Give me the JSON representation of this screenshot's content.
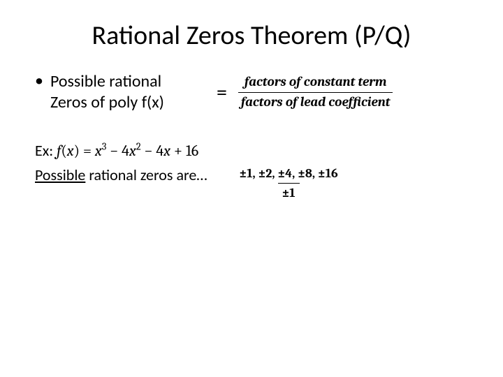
{
  "title": "Rational Zeros Theorem (P/Q)",
  "bullet": {
    "marker": "•",
    "line1": "Possible rational",
    "line2": "Zeros of poly f(x)"
  },
  "equals": "=",
  "formula": {
    "numerator": "factors of constant term",
    "denominator": "factors of lead coefficient"
  },
  "example": {
    "label": "Ex:  ",
    "poly_lead": "f",
    "poly_open": "(",
    "poly_var": "x",
    "poly_close": ") = ",
    "t1a": "x",
    "t1b": "3",
    "t2a": " − 4",
    "t2b": "x",
    "t2c": "2",
    "t3": " − 4",
    "t3b": "x",
    "t4": " + 16"
  },
  "possible_label_underline": "Possible",
  "possible_label_rest": " rational zeros are…",
  "result": {
    "numerator": "±1, ±2, ±4, ±8, ±16",
    "denominator": "±1"
  },
  "colors": {
    "text": "#000000",
    "background": "#ffffff"
  },
  "fonts": {
    "title_size": 38,
    "body_size": 24,
    "math_size": 19
  }
}
